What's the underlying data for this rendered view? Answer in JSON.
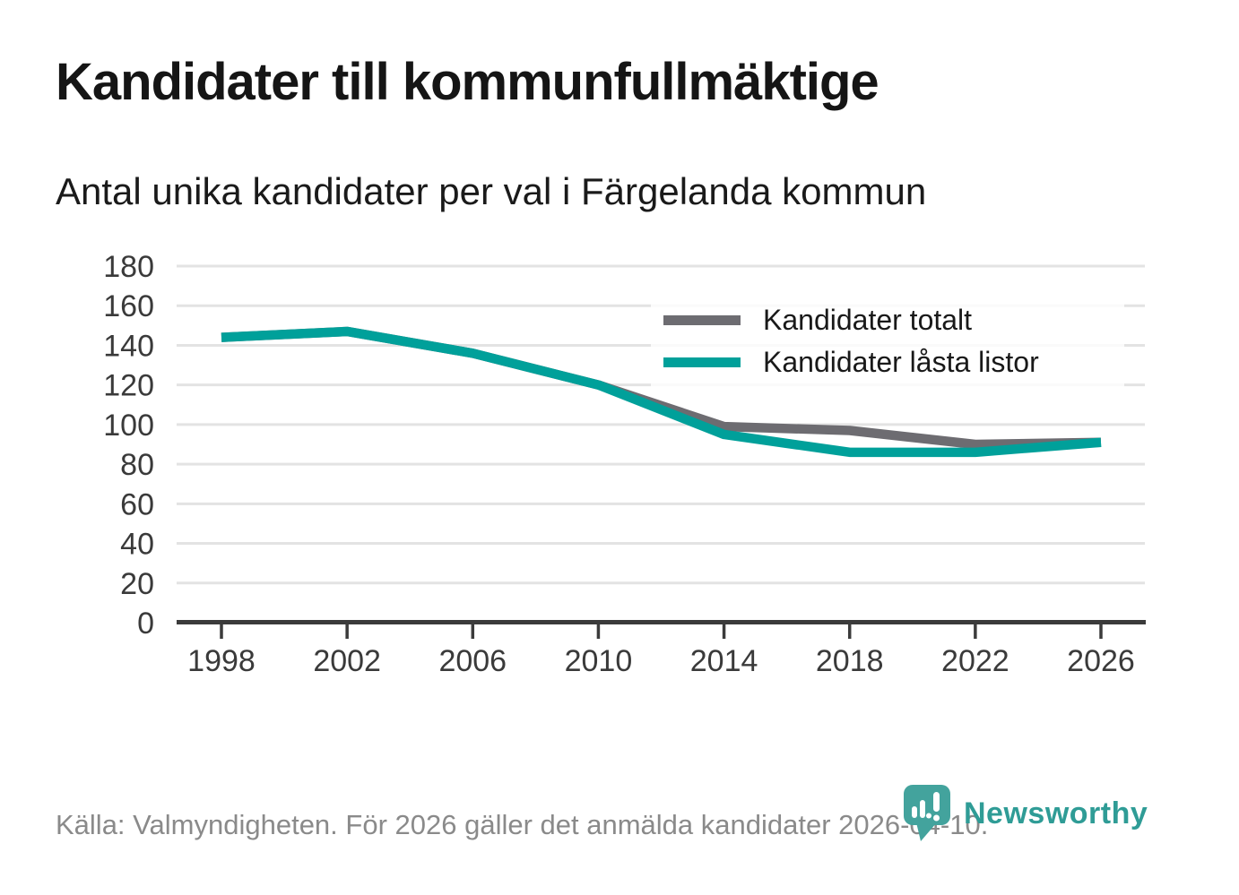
{
  "chart_data": {
    "type": "line",
    "title": "Kandidater till kommunfullmäktige",
    "subtitle": "Antal unika kandidater per val i Färgelanda kommun",
    "categories": [
      1998,
      2002,
      2006,
      2010,
      2014,
      2018,
      2022,
      2026
    ],
    "series": [
      {
        "name": "Kandidater totalt",
        "color": "#6d6c71",
        "values": [
          144,
          147,
          136,
          120,
          99,
          97,
          90,
          91
        ]
      },
      {
        "name": "Kandidater låsta listor",
        "color": "#00a09a",
        "values": [
          144,
          147,
          136,
          120,
          95,
          86,
          86,
          91
        ]
      }
    ],
    "xlabel": "",
    "ylabel": "",
    "ylim": [
      0,
      180
    ],
    "ytick_step": 20,
    "grid": true,
    "legend_position": "top-right"
  },
  "footer": {
    "source": "Källa: Valmyndigheten. För 2026 gäller det anmälda kandidater 2026-04-10.",
    "brand": "Newsworthy"
  },
  "colors": {
    "accent_teal": "#00a09a",
    "series_gray": "#6d6c71",
    "logo_teal": "#43a39d",
    "logo_text_teal": "#2f9c96",
    "grid": "#e3e3e3",
    "axis": "#3b3b3b",
    "tick_text": "#3a3a3a",
    "title_text": "#151515",
    "muted_text": "#8a8a8a"
  }
}
